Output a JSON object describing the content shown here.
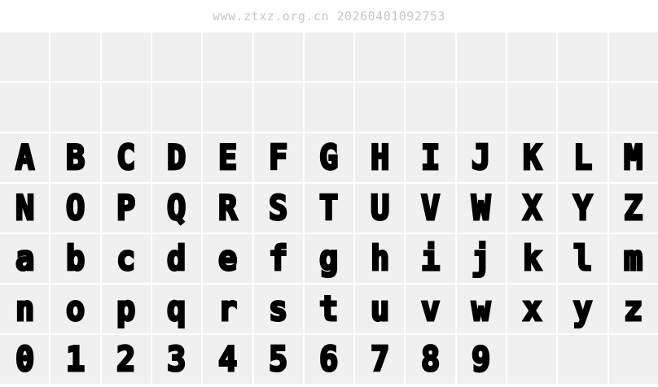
{
  "watermark": {
    "text": "www.ztxz.org.cn 20260401092753"
  },
  "colors": {
    "page_bg": "#ffffff",
    "cell_bg": "#f0f0f0",
    "grid_gap": "#ffffff",
    "glyph": "#000000",
    "watermark_text": "#c6c6c6"
  },
  "grid": {
    "columns": 13,
    "rows": [
      {
        "name": "empty-row-1",
        "cells": [
          "",
          "",
          "",
          "",
          "",
          "",
          "",
          "",
          "",
          "",
          "",
          "",
          ""
        ]
      },
      {
        "name": "empty-row-2",
        "cells": [
          "",
          "",
          "",
          "",
          "",
          "",
          "",
          "",
          "",
          "",
          "",
          "",
          ""
        ]
      },
      {
        "name": "uppercase-a-m",
        "cells": [
          "A",
          "B",
          "C",
          "D",
          "E",
          "F",
          "G",
          "H",
          "I",
          "J",
          "K",
          "L",
          "M"
        ]
      },
      {
        "name": "uppercase-n-z",
        "cells": [
          "N",
          "O",
          "P",
          "Q",
          "R",
          "S",
          "T",
          "U",
          "V",
          "W",
          "X",
          "Y",
          "Z"
        ]
      },
      {
        "name": "lowercase-a-m",
        "cells": [
          "a",
          "b",
          "c",
          "d",
          "e",
          "f",
          "g",
          "h",
          "i",
          "j",
          "k",
          "l",
          "m"
        ]
      },
      {
        "name": "lowercase-n-z",
        "cells": [
          "n",
          "o",
          "p",
          "q",
          "r",
          "s",
          "t",
          "u",
          "v",
          "w",
          "x",
          "y",
          "z"
        ]
      },
      {
        "name": "digits-0-9",
        "cells": [
          "0",
          "1",
          "2",
          "3",
          "4",
          "5",
          "6",
          "7",
          "8",
          "9",
          "",
          "",
          ""
        ]
      }
    ]
  }
}
